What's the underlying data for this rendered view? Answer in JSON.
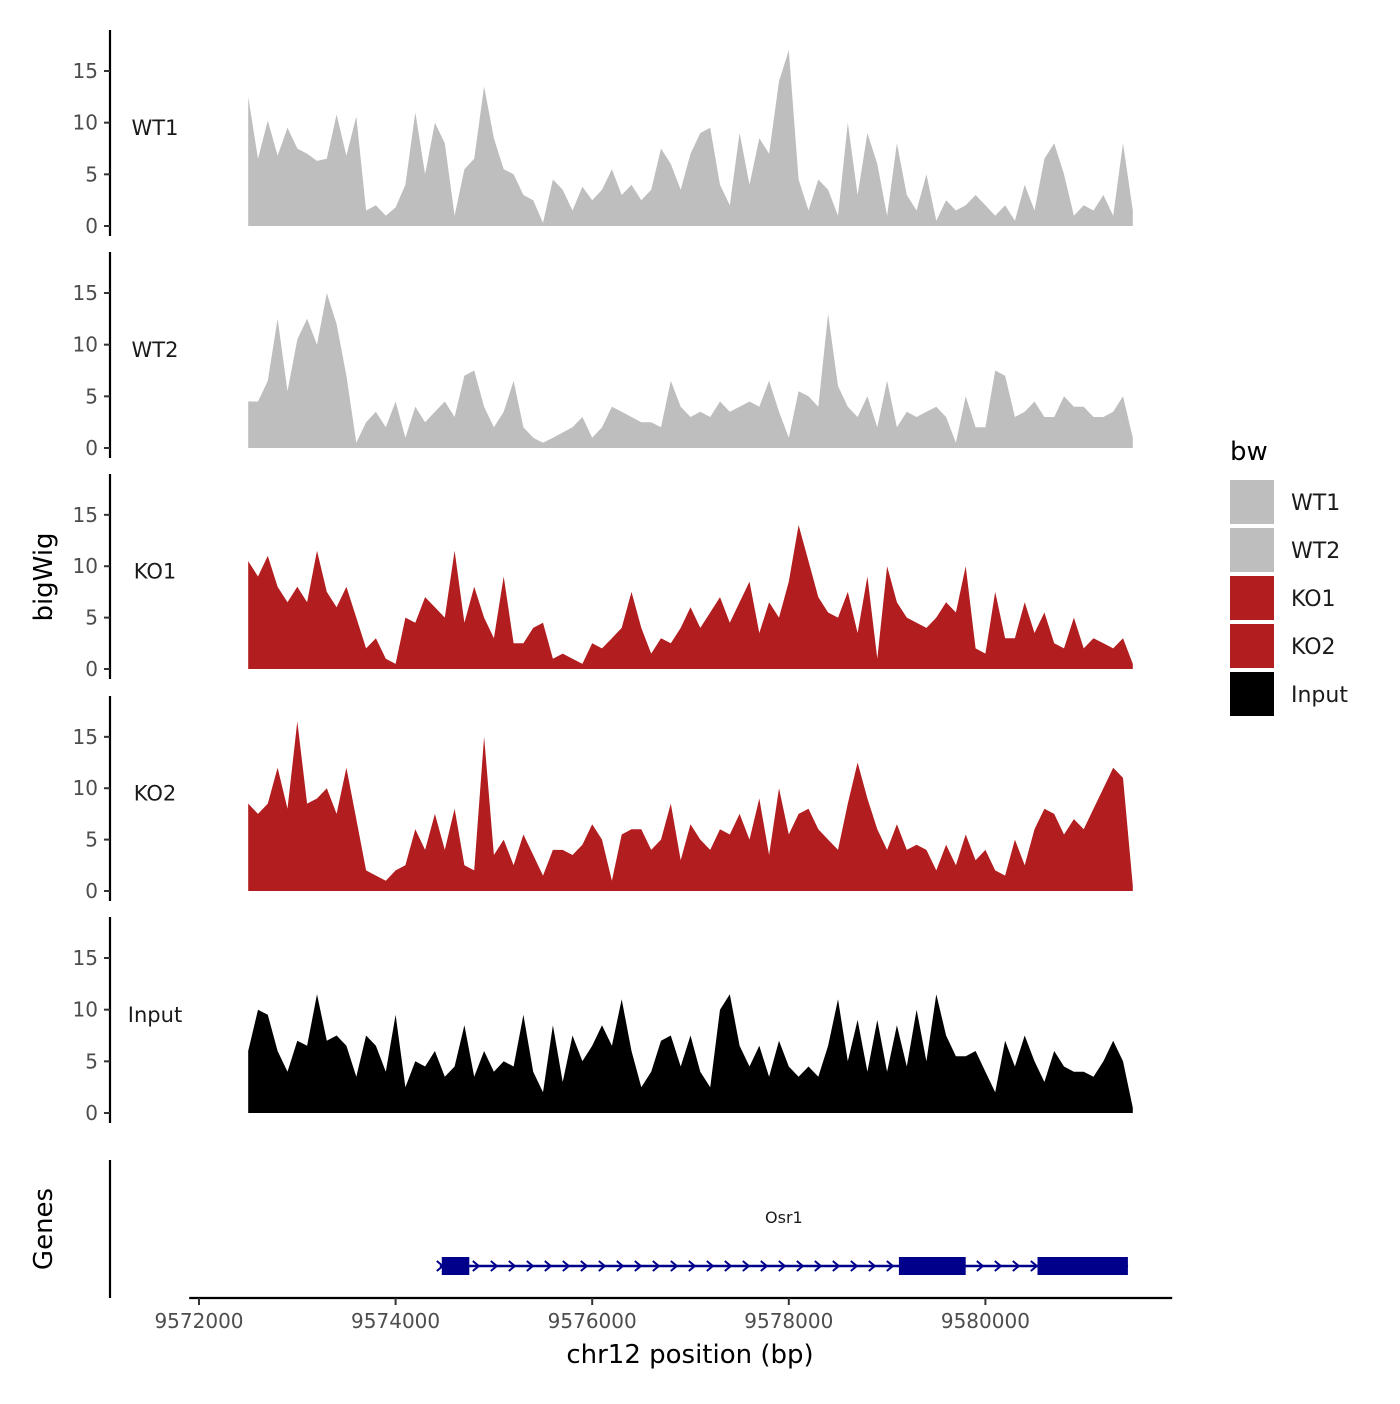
{
  "chart_data": {
    "type": "area",
    "ylabel": "bigWig",
    "xlabel": "chr12 position (bp)",
    "genes_label": "Genes",
    "ylim": [
      0,
      18
    ],
    "y_ticks": [
      0,
      5,
      10,
      15
    ],
    "y_tick_labels": [
      "0",
      "5",
      "10",
      "15"
    ],
    "xlim": [
      9571900,
      9581900
    ],
    "x_ticks": [
      9572000,
      9574000,
      9576000,
      9578000,
      9580000
    ],
    "x_tick_labels": [
      "9572000",
      "9574000",
      "9576000",
      "9578000",
      "9580000"
    ],
    "colors": {
      "WT1": "#bebebe",
      "WT2": "#bebebe",
      "KO1": "#b21d1f",
      "KO2": "#b21d1f",
      "Input": "#000000",
      "gene": "#00008b"
    },
    "legend": {
      "title": "bw",
      "position": "right",
      "entries": [
        "WT1",
        "WT2",
        "KO1",
        "KO2",
        "Input"
      ]
    },
    "series": [
      {
        "name": "WT1",
        "x": [
          9572500,
          9572600,
          9572700,
          9572800,
          9572900,
          9573000,
          9573100,
          9573200,
          9573300,
          9573400,
          9573500,
          9573600,
          9573700,
          9573800,
          9573900,
          9574000,
          9574100,
          9574200,
          9574300,
          9574400,
          9574500,
          9574600,
          9574700,
          9574800,
          9574900,
          9575000,
          9575100,
          9575200,
          9575300,
          9575400,
          9575500,
          9575600,
          9575700,
          9575800,
          9575900,
          9576000,
          9576100,
          9576200,
          9576300,
          9576400,
          9576500,
          9576600,
          9576700,
          9576800,
          9576900,
          9577000,
          9577100,
          9577200,
          9577300,
          9577400,
          9577500,
          9577600,
          9577700,
          9577800,
          9577900,
          9578000,
          9578100,
          9578200,
          9578300,
          9578400,
          9578500,
          9578600,
          9578700,
          9578800,
          9578900,
          9579000,
          9579100,
          9579200,
          9579300,
          9579400,
          9579500,
          9579600,
          9579700,
          9579800,
          9579900,
          9580000,
          9580100,
          9580200,
          9580300,
          9580400,
          9580500,
          9580600,
          9580700,
          9580800,
          9580900,
          9581000,
          9581100,
          9581200,
          9581300,
          9581400,
          9581500
        ],
        "values": [
          12.5,
          6.5,
          10.2,
          6.8,
          9.5,
          7.5,
          7.0,
          6.3,
          6.5,
          10.8,
          6.8,
          10.6,
          1.5,
          2.0,
          1.0,
          1.8,
          4.0,
          11.0,
          5.0,
          10.0,
          8.0,
          1.0,
          5.5,
          6.5,
          13.5,
          8.5,
          5.5,
          5.0,
          3.0,
          2.5,
          0.3,
          4.5,
          3.5,
          1.5,
          3.8,
          2.5,
          3.5,
          5.5,
          3.0,
          4.0,
          2.5,
          3.5,
          7.5,
          6.0,
          3.5,
          7.0,
          9.0,
          9.5,
          4.0,
          2.0,
          9.0,
          4.0,
          8.5,
          7.0,
          14.0,
          17.0,
          4.5,
          1.5,
          4.5,
          3.5,
          1.0,
          10.0,
          3.0,
          9.0,
          6.0,
          1.0,
          8.0,
          3.0,
          1.5,
          5.0,
          0.5,
          2.5,
          1.5,
          2.0,
          3.0,
          2.0,
          1.0,
          2.0,
          0.5,
          4.0,
          1.5,
          6.5,
          8.0,
          5.0,
          1.0,
          2.0,
          1.5,
          3.0,
          1.0,
          8.0,
          1.5
        ]
      },
      {
        "name": "WT2",
        "x": [
          9572500,
          9572600,
          9572700,
          9572800,
          9572900,
          9573000,
          9573100,
          9573200,
          9573300,
          9573400,
          9573500,
          9573600,
          9573700,
          9573800,
          9573900,
          9574000,
          9574100,
          9574200,
          9574300,
          9574400,
          9574500,
          9574600,
          9574700,
          9574800,
          9574900,
          9575000,
          9575100,
          9575200,
          9575300,
          9575400,
          9575500,
          9575600,
          9575700,
          9575800,
          9575900,
          9576000,
          9576100,
          9576200,
          9576300,
          9576400,
          9576500,
          9576600,
          9576700,
          9576800,
          9576900,
          9577000,
          9577100,
          9577200,
          9577300,
          9577400,
          9577500,
          9577600,
          9577700,
          9577800,
          9577900,
          9578000,
          9578100,
          9578200,
          9578300,
          9578400,
          9578500,
          9578600,
          9578700,
          9578800,
          9578900,
          9579000,
          9579100,
          9579200,
          9579300,
          9579400,
          9579500,
          9579600,
          9579700,
          9579800,
          9579900,
          9580000,
          9580100,
          9580200,
          9580300,
          9580400,
          9580500,
          9580600,
          9580700,
          9580800,
          9580900,
          9581000,
          9581100,
          9581200,
          9581300,
          9581400,
          9581500
        ],
        "values": [
          4.5,
          4.5,
          6.5,
          12.5,
          5.5,
          10.5,
          12.5,
          10.0,
          15.0,
          12.0,
          7.0,
          0.5,
          2.5,
          3.5,
          2.0,
          4.5,
          1.0,
          4.0,
          2.5,
          3.5,
          4.5,
          3.0,
          7.0,
          7.5,
          4.0,
          2.0,
          3.5,
          6.5,
          2.0,
          1.0,
          0.5,
          1.0,
          1.5,
          2.0,
          3.0,
          1.0,
          2.0,
          4.0,
          3.5,
          3.0,
          2.5,
          2.5,
          2.0,
          6.5,
          4.0,
          3.0,
          3.5,
          3.0,
          4.5,
          3.5,
          4.0,
          4.5,
          4.0,
          6.5,
          3.5,
          1.0,
          5.5,
          5.0,
          4.0,
          13.0,
          6.0,
          4.0,
          3.0,
          5.0,
          2.0,
          6.5,
          2.0,
          3.5,
          3.0,
          3.5,
          4.0,
          3.0,
          0.5,
          5.0,
          2.0,
          2.0,
          7.5,
          7.0,
          3.0,
          3.5,
          4.5,
          3.0,
          3.0,
          5.0,
          4.0,
          4.0,
          3.0,
          3.0,
          3.5,
          5.0,
          1.0
        ]
      },
      {
        "name": "KO1",
        "x": [
          9572500,
          9572600,
          9572700,
          9572800,
          9572900,
          9573000,
          9573100,
          9573200,
          9573300,
          9573400,
          9573500,
          9573600,
          9573700,
          9573800,
          9573900,
          9574000,
          9574100,
          9574200,
          9574300,
          9574400,
          9574500,
          9574600,
          9574700,
          9574800,
          9574900,
          9575000,
          9575100,
          9575200,
          9575300,
          9575400,
          9575500,
          9575600,
          9575700,
          9575800,
          9575900,
          9576000,
          9576100,
          9576200,
          9576300,
          9576400,
          9576500,
          9576600,
          9576700,
          9576800,
          9576900,
          9577000,
          9577100,
          9577200,
          9577300,
          9577400,
          9577500,
          9577600,
          9577700,
          9577800,
          9577900,
          9578000,
          9578100,
          9578200,
          9578300,
          9578400,
          9578500,
          9578600,
          9578700,
          9578800,
          9578900,
          9579000,
          9579100,
          9579200,
          9579300,
          9579400,
          9579500,
          9579600,
          9579700,
          9579800,
          9579900,
          9580000,
          9580100,
          9580200,
          9580300,
          9580400,
          9580500,
          9580600,
          9580700,
          9580800,
          9580900,
          9581000,
          9581100,
          9581200,
          9581300,
          9581400,
          9581500
        ],
        "values": [
          10.5,
          9.0,
          11.0,
          8.0,
          6.5,
          8.0,
          6.5,
          11.5,
          7.5,
          6.0,
          8.0,
          5.0,
          2.0,
          3.0,
          1.0,
          0.5,
          5.0,
          4.5,
          7.0,
          6.0,
          5.0,
          11.5,
          4.5,
          8.0,
          5.0,
          3.0,
          9.0,
          2.5,
          2.5,
          4.0,
          4.5,
          1.0,
          1.5,
          1.0,
          0.5,
          2.5,
          2.0,
          3.0,
          4.0,
          7.5,
          4.0,
          1.5,
          3.0,
          2.5,
          4.0,
          6.0,
          4.0,
          5.5,
          7.0,
          4.5,
          6.5,
          8.5,
          3.5,
          6.5,
          5.0,
          8.5,
          14.0,
          10.5,
          7.0,
          5.5,
          5.0,
          7.5,
          3.5,
          9.0,
          1.0,
          10.0,
          6.5,
          5.0,
          4.5,
          4.0,
          5.0,
          6.5,
          5.5,
          10.0,
          2.0,
          1.5,
          7.5,
          3.0,
          3.0,
          6.5,
          3.5,
          5.5,
          2.5,
          2.0,
          5.0,
          2.0,
          3.0,
          2.5,
          2.0,
          3.0,
          0.5
        ]
      },
      {
        "name": "KO2",
        "x": [
          9572500,
          9572600,
          9572700,
          9572800,
          9572900,
          9573000,
          9573100,
          9573200,
          9573300,
          9573400,
          9573500,
          9573600,
          9573700,
          9573800,
          9573900,
          9574000,
          9574100,
          9574200,
          9574300,
          9574400,
          9574500,
          9574600,
          9574700,
          9574800,
          9574900,
          9575000,
          9575100,
          9575200,
          9575300,
          9575400,
          9575500,
          9575600,
          9575700,
          9575800,
          9575900,
          9576000,
          9576100,
          9576200,
          9576300,
          9576400,
          9576500,
          9576600,
          9576700,
          9576800,
          9576900,
          9577000,
          9577100,
          9577200,
          9577300,
          9577400,
          9577500,
          9577600,
          9577700,
          9577800,
          9577900,
          9578000,
          9578100,
          9578200,
          9578300,
          9578400,
          9578500,
          9578600,
          9578700,
          9578800,
          9578900,
          9579000,
          9579100,
          9579200,
          9579300,
          9579400,
          9579500,
          9579600,
          9579700,
          9579800,
          9579900,
          9580000,
          9580100,
          9580200,
          9580300,
          9580400,
          9580500,
          9580600,
          9580700,
          9580800,
          9580900,
          9581000,
          9581100,
          9581200,
          9581300,
          9581400,
          9581500
        ],
        "values": [
          8.5,
          7.5,
          8.5,
          12.0,
          8.0,
          16.5,
          8.5,
          9.0,
          10.0,
          7.5,
          12.0,
          7.0,
          2.0,
          1.5,
          1.0,
          2.0,
          2.5,
          6.0,
          4.0,
          7.5,
          4.0,
          8.0,
          2.5,
          2.0,
          15.0,
          3.5,
          5.0,
          2.5,
          5.5,
          3.5,
          1.5,
          4.0,
          4.0,
          3.5,
          4.5,
          6.5,
          5.0,
          1.0,
          5.5,
          6.0,
          6.0,
          4.0,
          5.0,
          8.5,
          3.0,
          6.5,
          5.0,
          4.0,
          6.0,
          5.5,
          7.5,
          5.0,
          9.0,
          3.5,
          10.0,
          5.5,
          7.5,
          8.0,
          6.0,
          5.0,
          4.0,
          8.5,
          12.5,
          9.0,
          6.0,
          4.0,
          6.5,
          4.0,
          4.5,
          4.0,
          2.0,
          4.5,
          2.5,
          5.5,
          3.0,
          4.0,
          2.0,
          1.5,
          5.0,
          2.5,
          6.0,
          8.0,
          7.5,
          5.5,
          7.0,
          6.0,
          8.0,
          10.0,
          12.0,
          11.0,
          0.5
        ]
      },
      {
        "name": "Input",
        "x": [
          9572500,
          9572600,
          9572700,
          9572800,
          9572900,
          9573000,
          9573100,
          9573200,
          9573300,
          9573400,
          9573500,
          9573600,
          9573700,
          9573800,
          9573900,
          9574000,
          9574100,
          9574200,
          9574300,
          9574400,
          9574500,
          9574600,
          9574700,
          9574800,
          9574900,
          9575000,
          9575100,
          9575200,
          9575300,
          9575400,
          9575500,
          9575600,
          9575700,
          9575800,
          9575900,
          9576000,
          9576100,
          9576200,
          9576300,
          9576400,
          9576500,
          9576600,
          9576700,
          9576800,
          9576900,
          9577000,
          9577100,
          9577200,
          9577300,
          9577400,
          9577500,
          9577600,
          9577700,
          9577800,
          9577900,
          9578000,
          9578100,
          9578200,
          9578300,
          9578400,
          9578500,
          9578600,
          9578700,
          9578800,
          9578900,
          9579000,
          9579100,
          9579200,
          9579300,
          9579400,
          9579500,
          9579600,
          9579700,
          9579800,
          9579900,
          9580000,
          9580100,
          9580200,
          9580300,
          9580400,
          9580500,
          9580600,
          9580700,
          9580800,
          9580900,
          9581000,
          9581100,
          9581200,
          9581300,
          9581400,
          9581500
        ],
        "values": [
          6.0,
          10.0,
          9.5,
          6.0,
          4.0,
          7.0,
          6.5,
          11.5,
          7.0,
          7.5,
          6.5,
          3.5,
          7.5,
          6.5,
          4.0,
          9.5,
          2.5,
          5.0,
          4.5,
          6.0,
          3.5,
          4.5,
          8.5,
          3.5,
          6.0,
          4.0,
          5.0,
          4.5,
          9.5,
          4.0,
          2.0,
          8.5,
          3.0,
          7.5,
          5.0,
          6.5,
          8.5,
          6.5,
          11.0,
          6.0,
          2.5,
          4.0,
          7.0,
          7.5,
          4.5,
          7.5,
          4.0,
          2.5,
          10.0,
          11.5,
          6.5,
          4.5,
          6.5,
          3.5,
          7.0,
          4.5,
          3.5,
          4.5,
          3.5,
          6.5,
          11.0,
          5.0,
          9.0,
          4.0,
          9.0,
          4.0,
          8.5,
          4.5,
          10.0,
          5.0,
          11.5,
          7.5,
          5.5,
          5.5,
          6.0,
          4.0,
          2.0,
          7.0,
          4.5,
          7.5,
          5.0,
          3.0,
          6.0,
          4.5,
          4.0,
          4.0,
          3.5,
          5.0,
          7.0,
          5.0,
          0.5
        ]
      }
    ],
    "gene": {
      "name": "Osr1",
      "strand": "+",
      "start": 9574450,
      "end": 9581450,
      "exons": [
        [
          9574470,
          9574750
        ],
        [
          9579120,
          9579800
        ],
        [
          9580530,
          9581450
        ]
      ]
    }
  }
}
